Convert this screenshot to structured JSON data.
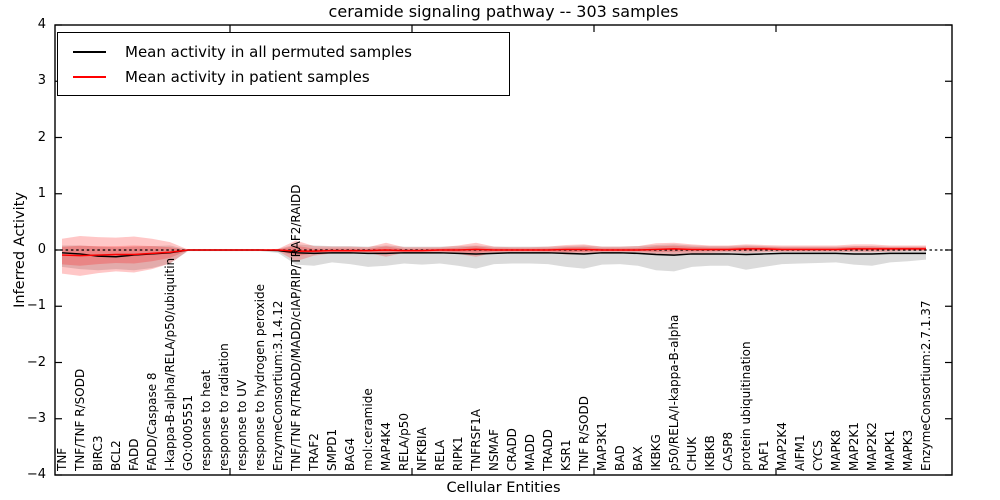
{
  "figure": {
    "title": "ceramide signaling pathway -- 303 samples",
    "xlabel": "Cellular Entities",
    "ylabel": "Inferred Activity"
  },
  "legend": {
    "position": "upper left",
    "entries": [
      {
        "label": "Mean activity in all permuted samples",
        "color": "#000000"
      },
      {
        "label": "Mean activity in patient samples",
        "color": "#ff0000"
      }
    ]
  },
  "chart_data": {
    "type": "line",
    "title": "ceramide signaling pathway -- 303 samples",
    "xlabel": "Cellular Entities",
    "ylabel": "Inferred Activity",
    "ylim": [
      -4,
      4
    ],
    "yticks": [
      4,
      3,
      2,
      1,
      0,
      -1,
      -2,
      -3,
      -4
    ],
    "grid": false,
    "reference_line_y": 0,
    "legend_position": "upper left",
    "categories": [
      "TNF",
      "TNF/TNF R/SODD",
      "BIRC3",
      "BCL2",
      "FADD",
      "FADD/Caspase 8",
      "I-kappa-B-alpha/RELA/p50/ubiquitin",
      "GO:0005551",
      "response to heat",
      "response to radiation",
      "response to UV",
      "response to hydrogen peroxide",
      "EnzymeConsortium:3.1.4.12",
      "TNF/TNF R/TRADD/MADD/cIAP/RIP/TRAF2/RAIDD",
      "TRAF2",
      "SMPD1",
      "BAG4",
      "mol:ceramide",
      "MAP4K4",
      "RELA/p50",
      "NFKBIA",
      "RELA",
      "RIPK1",
      "TNFRSF1A",
      "NSMAF",
      "CRADD",
      "MADD",
      "TRADD",
      "KSR1",
      "TNF R/SODD",
      "MAP3K1",
      "BAD",
      "BAX",
      "IKBKG",
      "p50/RELA/I-kappa-B-alpha",
      "CHUK",
      "IKBKB",
      "CASP8",
      "protein ubiquitination",
      "RAF1",
      "MAP2K4",
      "AIFM1",
      "CYCS",
      "MAPK8",
      "MAP2K1",
      "MAP2K2",
      "MAPK1",
      "MAPK3",
      "EnzymeConsortium:2.7.1.37"
    ],
    "series": [
      {
        "name": "Mean activity in all permuted samples",
        "color": "#000000",
        "band_color": "rgba(110,110,110,0.25)",
        "mean": [
          -0.05,
          -0.07,
          -0.11,
          -0.12,
          -0.09,
          -0.07,
          -0.05,
          0,
          0,
          0,
          0,
          0,
          -0.01,
          -0.05,
          -0.06,
          -0.05,
          -0.05,
          -0.06,
          -0.06,
          -0.05,
          -0.05,
          -0.05,
          -0.06,
          -0.07,
          -0.06,
          -0.05,
          -0.05,
          -0.05,
          -0.06,
          -0.07,
          -0.05,
          -0.05,
          -0.06,
          -0.08,
          -0.09,
          -0.07,
          -0.07,
          -0.07,
          -0.08,
          -0.07,
          -0.06,
          -0.06,
          -0.06,
          -0.06,
          -0.07,
          -0.07,
          -0.06,
          -0.06,
          -0.06
        ],
        "band_upper": [
          0.08,
          0.08,
          0.06,
          0.05,
          0.06,
          0.07,
          0.08,
          0.01,
          0.01,
          0.01,
          0.01,
          0.01,
          0.02,
          0.1,
          0.08,
          0.07,
          0.07,
          0.06,
          0.08,
          0.06,
          0.06,
          0.06,
          0.07,
          0.08,
          0.06,
          0.06,
          0.06,
          0.06,
          0.07,
          0.08,
          0.06,
          0.06,
          0.07,
          0.09,
          0.1,
          0.08,
          0.07,
          0.07,
          0.08,
          0.07,
          0.06,
          0.06,
          0.06,
          0.06,
          0.07,
          0.07,
          0.06,
          0.06,
          0.06
        ],
        "band_lower": [
          -0.3,
          -0.34,
          -0.36,
          -0.34,
          -0.36,
          -0.32,
          -0.24,
          -0.02,
          -0.02,
          -0.02,
          -0.02,
          -0.02,
          -0.05,
          -0.26,
          -0.28,
          -0.22,
          -0.25,
          -0.3,
          -0.28,
          -0.24,
          -0.26,
          -0.24,
          -0.28,
          -0.33,
          -0.25,
          -0.24,
          -0.24,
          -0.25,
          -0.3,
          -0.33,
          -0.26,
          -0.25,
          -0.28,
          -0.36,
          -0.38,
          -0.3,
          -0.28,
          -0.28,
          -0.35,
          -0.3,
          -0.25,
          -0.24,
          -0.23,
          -0.22,
          -0.26,
          -0.28,
          -0.22,
          -0.2,
          -0.17
        ]
      },
      {
        "name": "Mean activity in patient samples",
        "color": "#ff0000",
        "band_color": "rgba(255,0,0,0.22)",
        "mean": [
          -0.09,
          -0.1,
          -0.09,
          -0.08,
          -0.08,
          -0.06,
          -0.04,
          0,
          0,
          0,
          0,
          0,
          0,
          -0.02,
          -0.02,
          -0.01,
          -0.01,
          -0.01,
          0,
          -0.01,
          -0.01,
          0,
          0,
          0.01,
          0,
          0,
          0,
          0,
          0.01,
          0.01,
          0,
          0,
          0,
          0.01,
          0.02,
          0.01,
          0.01,
          0.01,
          0.02,
          0.02,
          0.01,
          0.01,
          0.01,
          0.01,
          0.02,
          0.02,
          0.02,
          0.02,
          0.02
        ],
        "band_upper": [
          0.2,
          0.25,
          0.23,
          0.22,
          0.24,
          0.2,
          0.14,
          0.01,
          0.01,
          0.01,
          0.01,
          0.01,
          0.02,
          0.17,
          0.07,
          0.06,
          0.06,
          0.05,
          0.13,
          0.05,
          0.05,
          0.05,
          0.08,
          0.13,
          0.06,
          0.05,
          0.05,
          0.06,
          0.09,
          0.1,
          0.06,
          0.06,
          0.07,
          0.12,
          0.13,
          0.1,
          0.08,
          0.08,
          0.1,
          0.09,
          0.08,
          0.08,
          0.08,
          0.08,
          0.1,
          0.1,
          0.08,
          0.08,
          0.08
        ],
        "band_lower": [
          -0.42,
          -0.46,
          -0.41,
          -0.38,
          -0.4,
          -0.34,
          -0.24,
          -0.01,
          -0.01,
          -0.01,
          -0.01,
          -0.01,
          -0.02,
          -0.2,
          -0.1,
          -0.06,
          -0.06,
          -0.05,
          -0.12,
          -0.05,
          -0.05,
          -0.05,
          -0.07,
          -0.12,
          -0.05,
          -0.04,
          -0.04,
          -0.05,
          -0.08,
          -0.08,
          -0.04,
          -0.04,
          -0.04,
          -0.08,
          -0.08,
          -0.06,
          -0.05,
          -0.04,
          -0.05,
          -0.04,
          -0.03,
          -0.03,
          -0.03,
          -0.03,
          -0.04,
          -0.04,
          -0.03,
          -0.02,
          -0.02
        ]
      }
    ]
  }
}
